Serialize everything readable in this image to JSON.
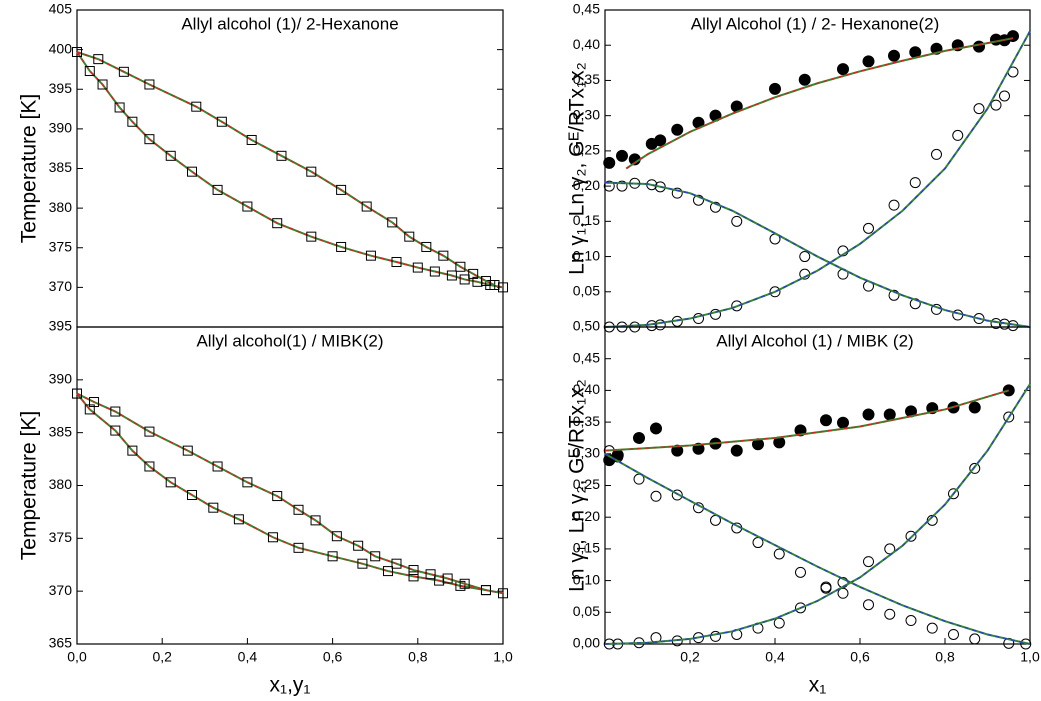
{
  "chart_data": [
    {
      "type": "scatter",
      "title": "Allyl alcohol (1)/ 2-Hexanone",
      "y_label": "Temperature [K]",
      "xlim": [
        0,
        1
      ],
      "ylim": [
        365,
        405
      ],
      "yticks": [
        370,
        375,
        380,
        385,
        390,
        395,
        400,
        405
      ],
      "series": [
        {
          "marker": "square",
          "line": true,
          "color": "#2e8b2e",
          "dash_color": "#e02020",
          "x": [
            0,
            0.03,
            0.06,
            0.1,
            0.13,
            0.17,
            0.22,
            0.27,
            0.33,
            0.4,
            0.47,
            0.55,
            0.62,
            0.69,
            0.75,
            0.8,
            0.84,
            0.88,
            0.91,
            0.94,
            0.97,
            1.0
          ],
          "values": [
            399.7,
            397.3,
            395.6,
            392.7,
            390.9,
            388.7,
            386.6,
            384.6,
            382.3,
            380.2,
            378.1,
            376.4,
            375.1,
            374.0,
            373.2,
            372.5,
            372.0,
            371.5,
            371.0,
            370.7,
            370.3,
            370.0
          ]
        },
        {
          "marker": "square",
          "line": true,
          "color": "#2e8b2e",
          "dash_color": "#e02020",
          "x": [
            0,
            0.05,
            0.11,
            0.17,
            0.28,
            0.34,
            0.41,
            0.48,
            0.55,
            0.62,
            0.68,
            0.74,
            0.78,
            0.82,
            0.86,
            0.9,
            0.93,
            0.96,
            0.98
          ],
          "values": [
            399.7,
            398.8,
            397.2,
            395.6,
            392.8,
            390.9,
            388.6,
            386.6,
            384.6,
            382.3,
            380.2,
            378.2,
            376.4,
            375.1,
            374.0,
            372.6,
            371.7,
            370.8,
            370.3
          ]
        }
      ]
    },
    {
      "type": "scatter",
      "title": "Allyl alcohol(1) / MIBK(2)",
      "y_label": "Temperature [K]",
      "x_label": "x₁,y₁",
      "xlim": [
        0,
        1
      ],
      "ylim": [
        365,
        395
      ],
      "yticks": [
        365,
        370,
        375,
        380,
        385,
        390,
        395
      ],
      "xticks": [
        {
          "value": 0,
          "label": "0,0"
        },
        {
          "value": 0.2,
          "label": "0,2"
        },
        {
          "value": 0.4,
          "label": "0,4"
        },
        {
          "value": 0.6,
          "label": "0,6"
        },
        {
          "value": 0.8,
          "label": "0,8"
        },
        {
          "value": 1,
          "label": "1,0"
        }
      ],
      "series": [
        {
          "marker": "square",
          "line": true,
          "color": "#2e8b2e",
          "dash_color": "#e02020",
          "x": [
            0,
            0.03,
            0.09,
            0.13,
            0.17,
            0.22,
            0.27,
            0.32,
            0.38,
            0.46,
            0.52,
            0.6,
            0.67,
            0.73,
            0.79,
            0.85,
            0.9,
            0.96,
            1.0
          ],
          "values": [
            388.7,
            387.2,
            385.2,
            383.3,
            381.8,
            380.3,
            379.1,
            377.9,
            376.8,
            375.1,
            374.1,
            373.3,
            372.6,
            371.9,
            371.4,
            371.0,
            370.5,
            370.1,
            369.8
          ]
        },
        {
          "marker": "square",
          "line": true,
          "color": "#2e8b2e",
          "dash_color": "#e02020",
          "x": [
            0,
            0.04,
            0.09,
            0.17,
            0.26,
            0.33,
            0.4,
            0.47,
            0.52,
            0.56,
            0.61,
            0.66,
            0.7,
            0.75,
            0.79,
            0.83,
            0.87,
            0.91,
            0.96
          ],
          "values": [
            388.7,
            387.9,
            387.0,
            385.1,
            383.3,
            381.8,
            380.3,
            379.0,
            377.7,
            376.7,
            375.2,
            374.3,
            373.3,
            372.6,
            372.0,
            371.6,
            371.2,
            370.7,
            370.1
          ]
        }
      ]
    },
    {
      "type": "scatter",
      "title": "Allyl Alcohol (1) / 2- Hexanone(2)",
      "y_label": "Ln γ₁, Ln γ₂, Gᴱ/RTx₁x₂",
      "xlim": [
        0,
        1
      ],
      "ylim": [
        0,
        0.45
      ],
      "yticks": [
        {
          "value": 0.05,
          "label": "0,05"
        },
        {
          "value": 0.1,
          "label": "0,10"
        },
        {
          "value": 0.15,
          "label": "0,15"
        },
        {
          "value": 0.2,
          "label": "0,20"
        },
        {
          "value": 0.25,
          "label": "0,25"
        },
        {
          "value": 0.3,
          "label": "0,30"
        },
        {
          "value": 0.35,
          "label": "0,35"
        },
        {
          "value": 0.4,
          "label": "0,40"
        },
        {
          "value": 0.45,
          "label": "0,45"
        }
      ],
      "series": [
        {
          "marker": "filled-circle",
          "line": false,
          "color": "#000000",
          "x": [
            0.01,
            0.04,
            0.07,
            0.11,
            0.13,
            0.17,
            0.22,
            0.26,
            0.31,
            0.4,
            0.47,
            0.56,
            0.62,
            0.68,
            0.73,
            0.78,
            0.83,
            0.88,
            0.92,
            0.94,
            0.96
          ],
          "values": [
            0.233,
            0.243,
            0.238,
            0.26,
            0.265,
            0.28,
            0.29,
            0.3,
            0.313,
            0.338,
            0.351,
            0.366,
            0.377,
            0.385,
            0.39,
            0.395,
            0.4,
            0.398,
            0.408,
            0.407,
            0.413
          ]
        },
        {
          "marker": "circle",
          "line": false,
          "color": "#000000",
          "x": [
            0.01,
            0.04,
            0.07,
            0.11,
            0.13,
            0.17,
            0.22,
            0.26,
            0.31,
            0.4,
            0.47,
            0.56,
            0.62,
            0.68,
            0.73,
            0.78,
            0.83,
            0.88,
            0.92,
            0.94,
            0.96
          ],
          "values": [
            0,
            0,
            0,
            0.002,
            0.003,
            0.008,
            0.012,
            0.018,
            0.03,
            0.05,
            0.075,
            0.108,
            0.14,
            0.173,
            0.205,
            0.245,
            0.272,
            0.31,
            0.315,
            0.328,
            0.362
          ]
        },
        {
          "marker": "circle",
          "line": false,
          "color": "#000000",
          "x": [
            0.01,
            0.04,
            0.07,
            0.11,
            0.13,
            0.17,
            0.22,
            0.26,
            0.31,
            0.4,
            0.47,
            0.56,
            0.62,
            0.68,
            0.73,
            0.78,
            0.83,
            0.88,
            0.92,
            0.94,
            0.96
          ],
          "values": [
            0.2,
            0.2,
            0.204,
            0.202,
            0.199,
            0.19,
            0.18,
            0.17,
            0.15,
            0.125,
            0.1,
            0.075,
            0.058,
            0.045,
            0.033,
            0.025,
            0.017,
            0.012,
            0.005,
            0.004,
            0.002
          ]
        },
        {
          "marker": "none",
          "line": true,
          "color": "#2e8b2e",
          "dash_color": "#e02020",
          "x": [
            0.05,
            0.1,
            0.2,
            0.3,
            0.4,
            0.5,
            0.6,
            0.7,
            0.8,
            0.9,
            0.96
          ],
          "values": [
            0.225,
            0.245,
            0.277,
            0.303,
            0.326,
            0.346,
            0.363,
            0.378,
            0.392,
            0.403,
            0.41
          ]
        },
        {
          "marker": "none",
          "line": true,
          "color": "#2e8b2e",
          "dash_color": "#3040c0",
          "x": [
            0,
            0.1,
            0.2,
            0.3,
            0.4,
            0.5,
            0.6,
            0.7,
            0.8,
            0.9,
            1.0
          ],
          "values": [
            0,
            0.003,
            0.012,
            0.027,
            0.05,
            0.08,
            0.118,
            0.165,
            0.225,
            0.31,
            0.42
          ]
        },
        {
          "marker": "none",
          "line": true,
          "color": "#2e8b2e",
          "dash_color": "#3040c0",
          "x": [
            0,
            0.1,
            0.2,
            0.3,
            0.4,
            0.5,
            0.6,
            0.7,
            0.8,
            0.9,
            1.0
          ],
          "values": [
            0.205,
            0.203,
            0.19,
            0.165,
            0.133,
            0.1,
            0.07,
            0.045,
            0.024,
            0.009,
            0
          ]
        }
      ]
    },
    {
      "type": "scatter",
      "title": "Allyl Alcohol (1) / MIBK (2)",
      "y_label": "Ln γ₁, Ln γ₂, Gᴱ/RTx₁x₂",
      "x_label": "x₁",
      "xlim": [
        0,
        1
      ],
      "ylim": [
        0,
        0.5
      ],
      "xticks": [
        {
          "value": 0.2,
          "label": "0,2"
        },
        {
          "value": 0.4,
          "label": "0,4"
        },
        {
          "value": 0.6,
          "label": "0,6"
        },
        {
          "value": 0.8,
          "label": "0,8"
        },
        {
          "value": 1,
          "label": "1,0"
        }
      ],
      "yticks": [
        {
          "value": 0,
          "label": "0,00"
        },
        {
          "value": 0.05,
          "label": "0,05"
        },
        {
          "value": 0.1,
          "label": "0,10"
        },
        {
          "value": 0.15,
          "label": "0,15"
        },
        {
          "value": 0.2,
          "label": "0,20"
        },
        {
          "value": 0.25,
          "label": "0,25"
        },
        {
          "value": 0.3,
          "label": "0,30"
        },
        {
          "value": 0.35,
          "label": "0,35"
        },
        {
          "value": 0.4,
          "label": "0,40"
        },
        {
          "value": 0.45,
          "label": "0,45"
        },
        {
          "value": 0.5,
          "label": "0,50"
        }
      ],
      "series": [
        {
          "marker": "filled-circle",
          "line": false,
          "color": "#000000",
          "x": [
            0.01,
            0.03,
            0.08,
            0.12,
            0.17,
            0.22,
            0.26,
            0.31,
            0.36,
            0.41,
            0.46,
            0.52,
            0.56,
            0.62,
            0.67,
            0.72,
            0.77,
            0.82,
            0.87,
            0.95
          ],
          "values": [
            0.29,
            0.298,
            0.325,
            0.34,
            0.305,
            0.308,
            0.316,
            0.305,
            0.315,
            0.318,
            0.337,
            0.353,
            0.349,
            0.362,
            0.362,
            0.367,
            0.372,
            0.373,
            0.373,
            0.4
          ]
        },
        {
          "marker": "circle",
          "line": false,
          "color": "#000000",
          "x": [
            0.01,
            0.03,
            0.08,
            0.12,
            0.17,
            0.22,
            0.26,
            0.31,
            0.36,
            0.41,
            0.46,
            0.52,
            0.56,
            0.62,
            0.67,
            0.72,
            0.77,
            0.82,
            0.87,
            0.95,
            0.99
          ],
          "values": [
            0.305,
            0.295,
            0.26,
            0.233,
            0.235,
            0.215,
            0.195,
            0.183,
            0.16,
            0.142,
            0.113,
            0.09,
            0.08,
            0.062,
            0.047,
            0.037,
            0.025,
            0.015,
            0.008,
            0.001,
            0
          ]
        },
        {
          "marker": "circle",
          "line": false,
          "color": "#000000",
          "x": [
            0.01,
            0.03,
            0.08,
            0.12,
            0.17,
            0.22,
            0.26,
            0.31,
            0.36,
            0.41,
            0.46,
            0.52,
            0.56,
            0.62,
            0.67,
            0.72,
            0.77,
            0.82,
            0.87,
            0.95
          ],
          "values": [
            0,
            0,
            0.002,
            0.01,
            0.005,
            0.01,
            0.012,
            0.015,
            0.025,
            0.033,
            0.057,
            0.088,
            0.097,
            0.13,
            0.15,
            0.17,
            0.195,
            0.237,
            0.277,
            0.358
          ]
        },
        {
          "marker": "none",
          "line": true,
          "color": "#2e8b2e",
          "dash_color": "#e02020",
          "x": [
            0,
            0.2,
            0.4,
            0.6,
            0.8,
            0.95
          ],
          "values": [
            0.305,
            0.313,
            0.325,
            0.343,
            0.37,
            0.4
          ]
        },
        {
          "marker": "none",
          "line": true,
          "color": "#2e8b2e",
          "dash_color": "#3040c0",
          "x": [
            0,
            0.1,
            0.2,
            0.3,
            0.4,
            0.5,
            0.6,
            0.7,
            0.8,
            0.9,
            1.0
          ],
          "values": [
            0,
            0.002,
            0.008,
            0.02,
            0.04,
            0.068,
            0.105,
            0.155,
            0.22,
            0.305,
            0.41
          ]
        },
        {
          "marker": "none",
          "line": true,
          "color": "#2e8b2e",
          "dash_color": "#3040c0",
          "x": [
            0,
            0.1,
            0.2,
            0.3,
            0.4,
            0.5,
            0.6,
            0.7,
            0.8,
            0.9,
            1.0
          ],
          "values": [
            0.3,
            0.262,
            0.226,
            0.19,
            0.156,
            0.122,
            0.09,
            0.061,
            0.036,
            0.015,
            0
          ]
        }
      ]
    }
  ]
}
